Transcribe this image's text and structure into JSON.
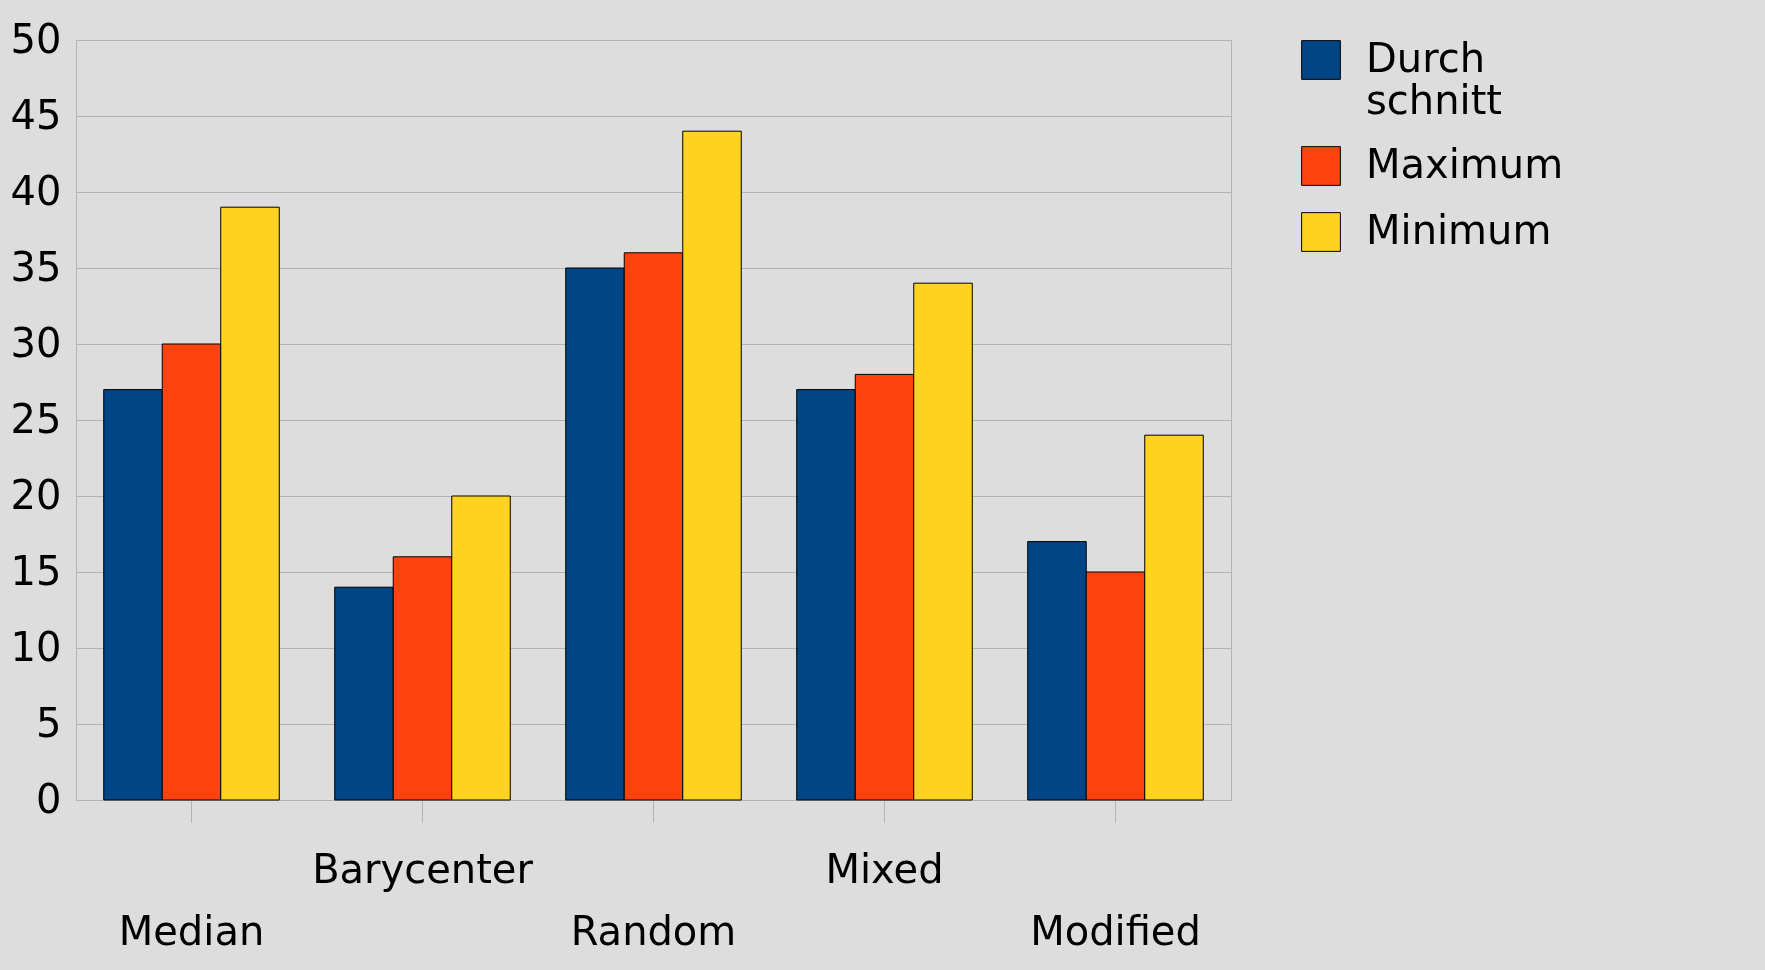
{
  "chart_data": {
    "type": "bar",
    "categories": [
      "Median",
      "Barycenter",
      "Random",
      "Mixed",
      "Modified"
    ],
    "series": [
      {
        "name": "Durch schnitt",
        "color": "#004586",
        "values": [
          27,
          14,
          35,
          27,
          17
        ]
      },
      {
        "name": "Maximum",
        "color": "#ff420e",
        "values": [
          30,
          16,
          36,
          28,
          15
        ]
      },
      {
        "name": "Minimum",
        "color": "#ffd320",
        "values": [
          39,
          20,
          44,
          34,
          24
        ]
      }
    ],
    "ylim": [
      0,
      50
    ],
    "yticks": [
      0,
      5,
      10,
      15,
      20,
      25,
      30,
      35,
      40,
      45,
      50
    ],
    "grid": "y",
    "legend": "right"
  }
}
